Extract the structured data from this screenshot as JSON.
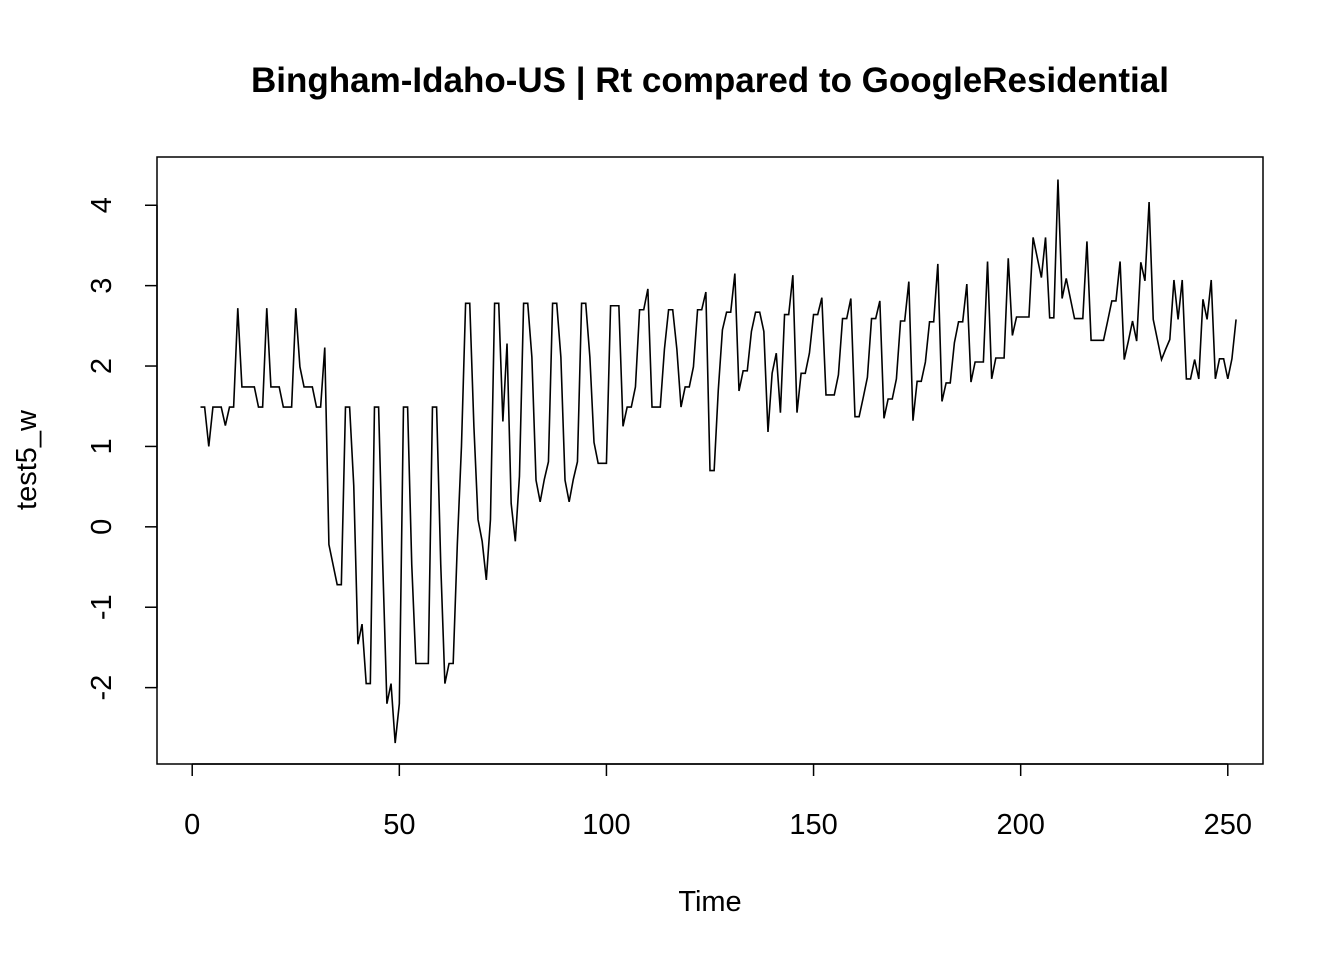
{
  "chart_data": {
    "type": "line",
    "title": "Bingham-Idaho-US | Rt compared to GoogleResidential",
    "xlabel": "Time",
    "ylabel": "test5_w",
    "xlim": [
      -8.5,
      258.5
    ],
    "ylim": [
      -2.95,
      4.6
    ],
    "x_ticks": [
      0,
      50,
      100,
      150,
      200,
      250
    ],
    "y_ticks": [
      -2,
      -1,
      0,
      1,
      2,
      3,
      4
    ],
    "grid": false,
    "line_color": "#000000",
    "series": [
      {
        "x_start": 2,
        "x_step": 1,
        "values": [
          1.49,
          1.49,
          1.0,
          1.49,
          1.49,
          1.49,
          1.26,
          1.49,
          1.49,
          2.72,
          1.74,
          1.74,
          1.74,
          1.74,
          1.49,
          1.49,
          2.72,
          1.74,
          1.74,
          1.74,
          1.49,
          1.49,
          1.49,
          2.72,
          1.99,
          1.74,
          1.74,
          1.74,
          1.49,
          1.49,
          2.23,
          -0.22,
          -0.47,
          -0.72,
          -0.72,
          1.49,
          1.49,
          0.51,
          -1.46,
          -1.21,
          -1.95,
          -1.95,
          1.49,
          1.49,
          -0.47,
          -2.2,
          -1.95,
          -2.69,
          -2.2,
          1.49,
          1.49,
          -0.47,
          -1.7,
          -1.7,
          -1.7,
          -1.7,
          1.49,
          1.49,
          -0.47,
          -1.95,
          -1.7,
          -1.7,
          -0.22,
          1.0,
          2.78,
          2.78,
          1.25,
          0.09,
          -0.18,
          -0.66,
          0.09,
          2.78,
          2.78,
          1.31,
          2.28,
          0.29,
          -0.18,
          0.63,
          2.78,
          2.78,
          2.11,
          0.58,
          0.31,
          0.59,
          0.81,
          2.78,
          2.78,
          2.11,
          0.58,
          0.31,
          0.59,
          0.81,
          2.78,
          2.78,
          2.11,
          1.05,
          0.79,
          0.79,
          0.79,
          2.75,
          2.75,
          2.75,
          1.25,
          1.49,
          1.49,
          1.74,
          2.7,
          2.7,
          2.96,
          1.49,
          1.49,
          1.49,
          2.21,
          2.7,
          2.7,
          2.21,
          1.49,
          1.74,
          1.74,
          1.99,
          2.7,
          2.7,
          2.92,
          0.7,
          0.7,
          1.7,
          2.45,
          2.67,
          2.67,
          3.15,
          1.69,
          1.94,
          1.94,
          2.43,
          2.67,
          2.67,
          2.43,
          1.18,
          1.91,
          2.16,
          1.42,
          2.64,
          2.64,
          3.13,
          1.42,
          1.91,
          1.91,
          2.16,
          2.64,
          2.64,
          2.85,
          1.64,
          1.64,
          1.64,
          1.89,
          2.59,
          2.59,
          2.84,
          1.37,
          1.37,
          1.61,
          1.86,
          2.59,
          2.59,
          2.81,
          1.35,
          1.59,
          1.59,
          1.84,
          2.56,
          2.56,
          3.05,
          1.32,
          1.81,
          1.81,
          2.05,
          2.55,
          2.55,
          3.27,
          1.56,
          1.79,
          1.79,
          2.29,
          2.55,
          2.55,
          3.02,
          1.8,
          2.05,
          2.05,
          2.05,
          3.3,
          1.84,
          2.1,
          2.1,
          2.1,
          3.34,
          2.38,
          2.61,
          2.61,
          2.61,
          2.61,
          3.6,
          3.35,
          3.1,
          3.6,
          2.6,
          2.6,
          4.32,
          2.84,
          3.09,
          2.84,
          2.59,
          2.59,
          2.59,
          3.55,
          2.32,
          2.32,
          2.32,
          2.32,
          2.56,
          2.81,
          2.81,
          3.3,
          2.08,
          2.31,
          2.56,
          2.31,
          3.29,
          3.06,
          4.04,
          2.58,
          2.33,
          2.08,
          2.21,
          2.33,
          3.07,
          2.58,
          3.07,
          1.84,
          1.84,
          2.08,
          1.84,
          2.83,
          2.58,
          3.07,
          1.84,
          2.09,
          2.09,
          1.84,
          2.09,
          2.58
        ]
      }
    ]
  }
}
